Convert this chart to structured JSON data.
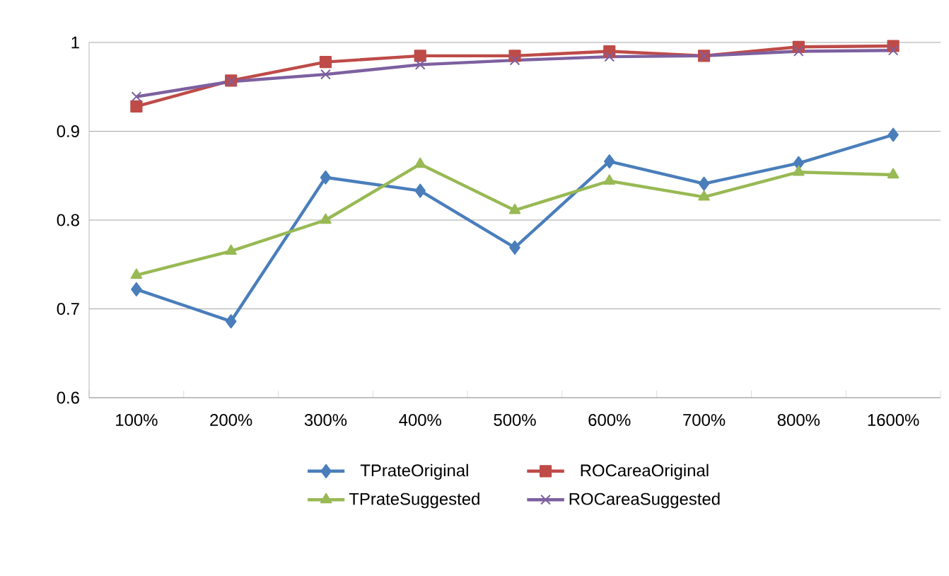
{
  "chart_data": {
    "type": "line",
    "categories": [
      "100%",
      "200%",
      "300%",
      "400%",
      "500%",
      "600%",
      "700%",
      "800%",
      "1600%"
    ],
    "series": [
      {
        "name": "TPrateOriginal",
        "color": "#4a7ebb",
        "marker": "diamond",
        "values": [
          0.722,
          0.686,
          0.848,
          0.833,
          0.769,
          0.866,
          0.841,
          0.864,
          0.896
        ]
      },
      {
        "name": "ROCareaOriginal",
        "color": "#be4b48",
        "marker": "square",
        "values": [
          0.928,
          0.957,
          0.978,
          0.985,
          0.985,
          0.99,
          0.985,
          0.995,
          0.996
        ]
      },
      {
        "name": "TPrateSuggested",
        "color": "#98b954",
        "marker": "triangle",
        "values": [
          0.738,
          0.765,
          0.8,
          0.863,
          0.811,
          0.844,
          0.826,
          0.854,
          0.851
        ]
      },
      {
        "name": "ROCareaSuggested",
        "color": "#7d60a0",
        "marker": "cross",
        "values": [
          0.939,
          0.956,
          0.964,
          0.975,
          0.98,
          0.984,
          0.985,
          0.99,
          0.991
        ]
      }
    ],
    "ylim": [
      0.6,
      1
    ],
    "yticks": [
      0.6,
      0.7,
      0.8,
      0.9,
      1
    ],
    "grid": "y",
    "legend": "bottom",
    "line_style": "solid"
  }
}
